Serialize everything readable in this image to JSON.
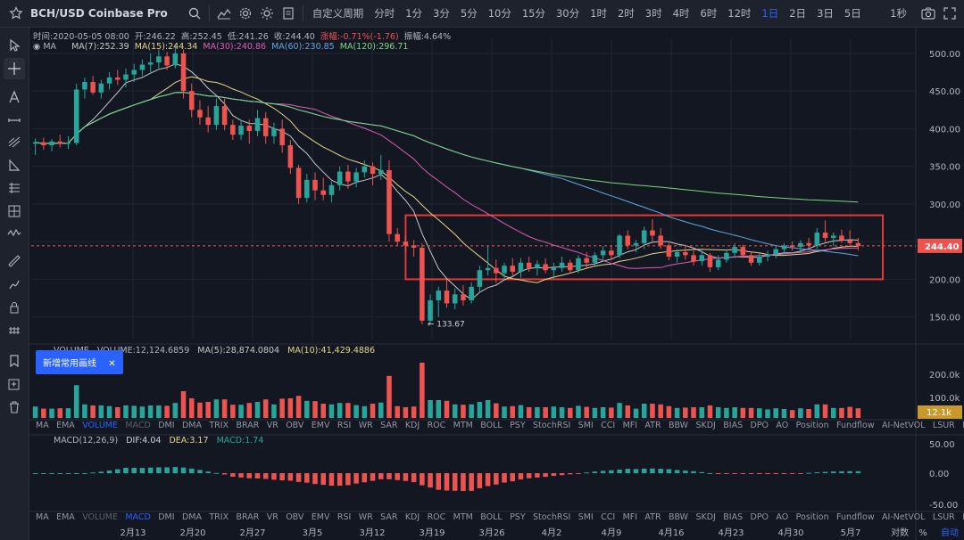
{
  "toolbar": {
    "symbol": "BCH/USD Coinbase Pro",
    "custom_period": "自定义周期",
    "intervals": [
      "分时",
      "1分",
      "3分",
      "5分",
      "10分",
      "15分",
      "30分",
      "1时",
      "2时",
      "3时",
      "4时",
      "6时",
      "12时",
      "1日",
      "2日",
      "3日",
      "5日"
    ],
    "active_interval": "1日",
    "refresh": "1秒"
  },
  "ohlc": {
    "time": "时间:2020-05-05 08:00",
    "open": "开:246.22",
    "high": "高:252.45",
    "low": "低:241.26",
    "close": "收:244.40",
    "change": "涨幅:-0.71%(-1.76)",
    "amplitude": "振幅:4.64%"
  },
  "ma_legend": {
    "name": "MA",
    "ma7": "MA(7):252.39",
    "ma15": "MA(15):244.34",
    "ma30": "MA(30):240.86",
    "ma60": "MA(60):230.85",
    "ma120": "MA(120):296.71"
  },
  "volume_legend": {
    "name": "VOLUME",
    "vol": "VOLUME:12,124.6859",
    "ma5": "MA(5):28,874.0804",
    "ma10": "MA(10):41,429.4886"
  },
  "macd_legend": {
    "name": "MACD(12,26,9)",
    "dif": "DIF:4.04",
    "dea": "DEA:3.17",
    "macd": "MACD:1.74"
  },
  "indicator_tabs": [
    "MA",
    "EMA",
    "VOLUME",
    "MACD",
    "DMI",
    "DMA",
    "TRIX",
    "BRAR",
    "VR",
    "OBV",
    "EMV",
    "RSI",
    "WR",
    "SAR",
    "KDJ",
    "ROC",
    "MTM",
    "BOLL",
    "PSY",
    "StochRSI",
    "SMI",
    "CCI",
    "MFI",
    "ATR",
    "BBW",
    "SKDJ",
    "BIAS",
    "DPO",
    "AO",
    "Position",
    "Fundflow",
    "AI-NetVOL",
    "LSUR",
    "BASIS"
  ],
  "indicator_tabs_active_1": "VOLUME",
  "indicator_tabs_active_2": "MACD",
  "price_axis": [
    "500.00",
    "450.00",
    "400.00",
    "350.00",
    "300.00",
    "250.00",
    "200.00",
    "150.00"
  ],
  "current_price": "244.40",
  "low_annotation": "← 133.67",
  "volume_axis": [
    "200.0k",
    "100.0k"
  ],
  "volume_current": "12.1k",
  "macd_axis": [
    "50.00",
    "0.00",
    "-50.00"
  ],
  "date_axis": [
    "2月13",
    "2月20",
    "2月27",
    "3月5",
    "3月12",
    "3月19",
    "3月26",
    "4月2",
    "4月9",
    "4月16",
    "4月23",
    "4月30",
    "5月7"
  ],
  "tooltip": "新增常用画线",
  "footer_left": "对数",
  "footer_pct": "%",
  "footer_auto": "自动",
  "colors": {
    "up": "#26a69a",
    "down": "#ef5350",
    "bg": "#131722",
    "accent": "#2962ff",
    "box": "#e53935"
  },
  "chart_data": {
    "type": "candlestick",
    "ylim": [
      120,
      520
    ],
    "candles": [
      [
        380,
        387,
        365,
        382
      ],
      [
        382,
        388,
        372,
        378
      ],
      [
        378,
        386,
        370,
        383
      ],
      [
        383,
        392,
        375,
        380
      ],
      [
        380,
        390,
        373,
        381
      ],
      [
        381,
        460,
        378,
        452
      ],
      [
        452,
        468,
        440,
        462
      ],
      [
        462,
        470,
        445,
        448
      ],
      [
        448,
        465,
        440,
        460
      ],
      [
        460,
        475,
        452,
        468
      ],
      [
        468,
        478,
        458,
        465
      ],
      [
        465,
        480,
        455,
        472
      ],
      [
        472,
        486,
        462,
        478
      ],
      [
        478,
        492,
        470,
        485
      ],
      [
        485,
        500,
        475,
        488
      ],
      [
        488,
        505,
        480,
        496
      ],
      [
        496,
        502,
        478,
        484
      ],
      [
        484,
        512,
        480,
        500
      ],
      [
        500,
        505,
        440,
        450
      ],
      [
        450,
        460,
        415,
        425
      ],
      [
        425,
        438,
        405,
        415
      ],
      [
        415,
        430,
        395,
        405
      ],
      [
        405,
        440,
        398,
        430
      ],
      [
        430,
        440,
        398,
        405
      ],
      [
        405,
        412,
        385,
        392
      ],
      [
        392,
        412,
        385,
        404
      ],
      [
        404,
        412,
        380,
        397
      ],
      [
        397,
        425,
        390,
        414
      ],
      [
        414,
        422,
        380,
        390
      ],
      [
        390,
        408,
        380,
        400
      ],
      [
        400,
        412,
        368,
        378
      ],
      [
        378,
        385,
        340,
        348
      ],
      [
        348,
        352,
        300,
        308
      ],
      [
        308,
        340,
        302,
        332
      ],
      [
        332,
        342,
        305,
        318
      ],
      [
        318,
        335,
        305,
        312
      ],
      [
        312,
        330,
        302,
        325
      ],
      [
        325,
        350,
        318,
        343
      ],
      [
        343,
        352,
        320,
        330
      ],
      [
        330,
        348,
        322,
        342
      ],
      [
        342,
        358,
        335,
        350
      ],
      [
        350,
        355,
        325,
        340
      ],
      [
        340,
        365,
        332,
        345
      ],
      [
        345,
        358,
        250,
        260
      ],
      [
        260,
        268,
        245,
        250
      ],
      [
        250,
        258,
        238,
        245
      ],
      [
        245,
        252,
        230,
        242
      ],
      [
        242,
        248,
        140,
        145
      ],
      [
        145,
        180,
        140,
        172
      ],
      [
        172,
        190,
        150,
        185
      ],
      [
        185,
        200,
        162,
        168
      ],
      [
        168,
        188,
        160,
        180
      ],
      [
        180,
        192,
        165,
        172
      ],
      [
        172,
        196,
        168,
        190
      ],
      [
        190,
        218,
        183,
        212
      ],
      [
        212,
        245,
        205,
        215
      ],
      [
        215,
        226,
        195,
        208
      ],
      [
        208,
        222,
        200,
        218
      ],
      [
        218,
        228,
        205,
        210
      ],
      [
        210,
        228,
        202,
        222
      ],
      [
        222,
        230,
        210,
        215
      ],
      [
        215,
        225,
        205,
        220
      ],
      [
        220,
        228,
        208,
        212
      ],
      [
        212,
        222,
        200,
        215
      ],
      [
        215,
        230,
        210,
        222
      ],
      [
        222,
        226,
        208,
        212
      ],
      [
        212,
        232,
        208,
        228
      ],
      [
        228,
        236,
        215,
        222
      ],
      [
        222,
        236,
        218,
        232
      ],
      [
        232,
        244,
        224,
        238
      ],
      [
        238,
        245,
        226,
        232
      ],
      [
        232,
        260,
        228,
        258
      ],
      [
        258,
        265,
        240,
        245
      ],
      [
        245,
        252,
        236,
        248
      ],
      [
        248,
        270,
        240,
        265
      ],
      [
        265,
        280,
        250,
        258
      ],
      [
        258,
        268,
        240,
        245
      ],
      [
        245,
        248,
        225,
        230
      ],
      [
        230,
        240,
        222,
        236
      ],
      [
        236,
        245,
        226,
        232
      ],
      [
        232,
        238,
        218,
        224
      ],
      [
        224,
        238,
        218,
        232
      ],
      [
        232,
        235,
        210,
        216
      ],
      [
        216,
        232,
        212,
        226
      ],
      [
        226,
        240,
        222,
        235
      ],
      [
        235,
        248,
        228,
        243
      ],
      [
        243,
        246,
        228,
        232
      ],
      [
        232,
        236,
        218,
        222
      ],
      [
        222,
        235,
        218,
        230
      ],
      [
        230,
        238,
        224,
        233
      ],
      [
        233,
        245,
        228,
        240
      ],
      [
        240,
        248,
        233,
        245
      ],
      [
        245,
        250,
        238,
        243
      ],
      [
        243,
        252,
        235,
        248
      ],
      [
        248,
        255,
        240,
        245
      ],
      [
        245,
        268,
        240,
        262
      ],
      [
        262,
        278,
        250,
        255
      ],
      [
        255,
        262,
        244,
        258
      ],
      [
        258,
        266,
        248,
        252
      ],
      [
        252,
        265,
        244,
        248
      ],
      [
        248,
        255,
        238,
        244
      ]
    ],
    "box": {
      "x_start_index": 46,
      "x_end_index": 100,
      "y_low": 200,
      "y_high": 285
    }
  }
}
